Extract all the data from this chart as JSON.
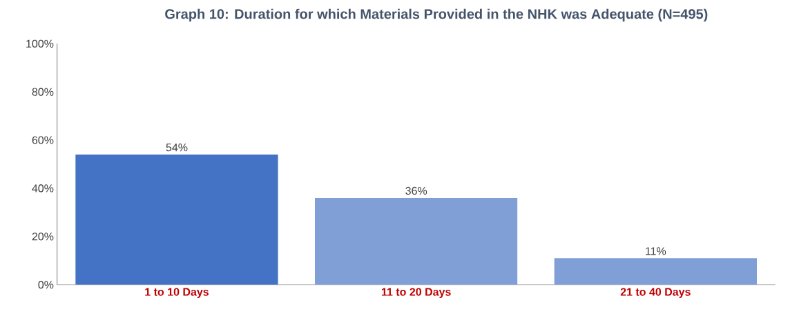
{
  "chart_data": {
    "type": "bar",
    "title": "Graph 10: Duration for which Materials Provided in the NHK was Adequate (N=495)",
    "categories": [
      "1 to 10 Days",
      "11 to 20 Days",
      "21 to 40 Days"
    ],
    "values": [
      54,
      36,
      11
    ],
    "colors": [
      "#4472c4",
      "#7f9fd6",
      "#7f9fd6"
    ],
    "ylim": [
      0,
      100
    ],
    "yticks": [
      {
        "value": 0,
        "label": "0%"
      },
      {
        "value": 20,
        "label": "20%"
      },
      {
        "value": 40,
        "label": "40%"
      },
      {
        "value": 60,
        "label": "60%"
      },
      {
        "value": 80,
        "label": "80%"
      },
      {
        "value": 100,
        "label": "100%"
      }
    ],
    "value_labels": [
      "54%",
      "36%",
      "11%"
    ],
    "grid": false
  }
}
